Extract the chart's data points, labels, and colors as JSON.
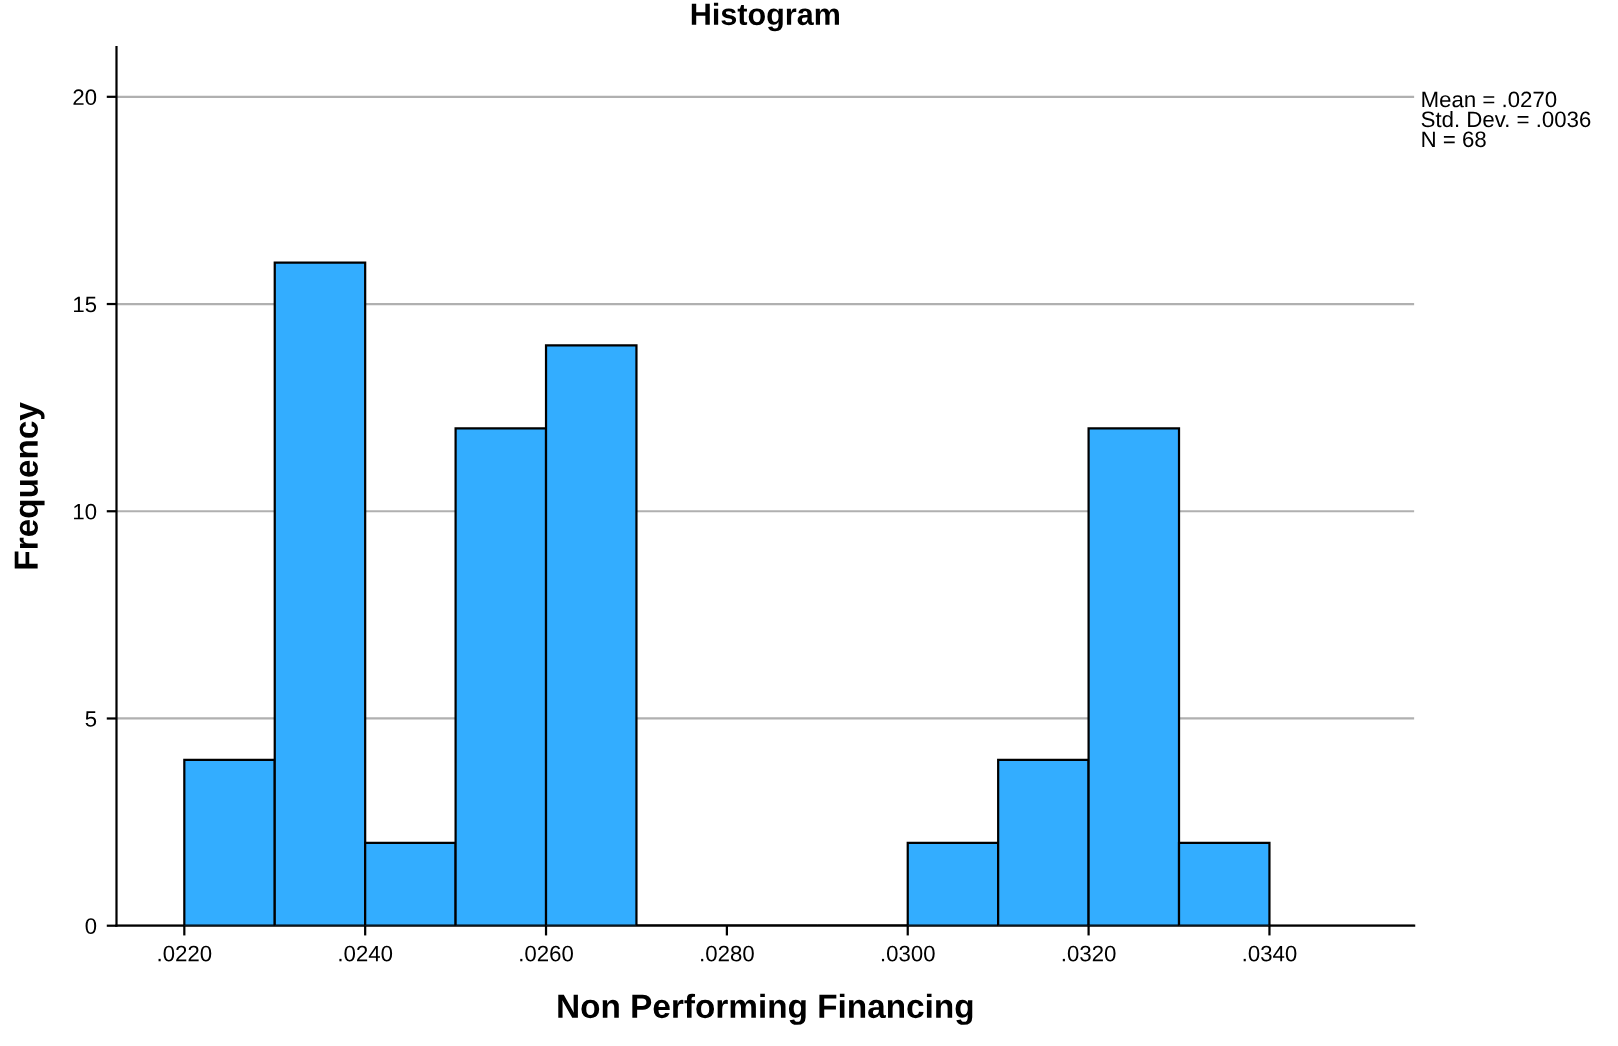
{
  "chart_data": {
    "type": "histogram",
    "title": "Histogram",
    "xlabel": "Non Performing Financing",
    "ylabel": "Frequency",
    "bins": [
      0.022,
      0.023,
      0.024,
      0.025,
      0.026,
      0.027,
      0.028,
      0.029,
      0.03,
      0.031,
      0.032,
      0.033,
      0.034
    ],
    "values": [
      4,
      16,
      2,
      12,
      14,
      0,
      0,
      0,
      2,
      4,
      12,
      2
    ],
    "color": "#33adff",
    "xlim": [
      0.02125,
      0.0356
    ],
    "ylim": [
      0,
      21.2
    ],
    "xticks": [
      {
        "value": 0.022,
        "label": ".0220"
      },
      {
        "value": 0.024,
        "label": ".0240"
      },
      {
        "value": 0.026,
        "label": ".0260"
      },
      {
        "value": 0.028,
        "label": ".0280"
      },
      {
        "value": 0.03,
        "label": ".0300"
      },
      {
        "value": 0.032,
        "label": ".0320"
      },
      {
        "value": 0.034,
        "label": ".0340"
      }
    ],
    "yticks": [
      0,
      5,
      10,
      15,
      20
    ],
    "grid": "y",
    "annotations": [
      "Mean = .0270\nStd. Dev. = .0036\nN = 68"
    ]
  }
}
